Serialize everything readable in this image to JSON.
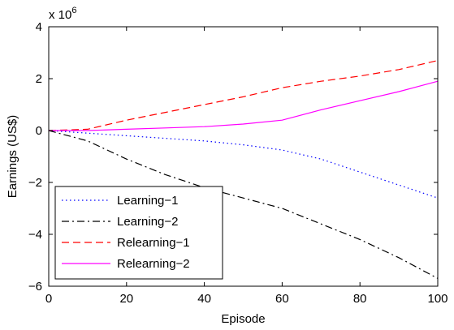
{
  "chart_data": {
    "type": "line",
    "xlabel": "Episode",
    "ylabel": "Earnings (US$)",
    "exponent_label": "x 10",
    "exponent_power": "6",
    "xlim": [
      0,
      100
    ],
    "ylim": [
      -6,
      4
    ],
    "xticks": [
      0,
      20,
      40,
      60,
      80,
      100
    ],
    "yticks": [
      -6,
      -4,
      -2,
      0,
      2,
      4
    ],
    "grid": false,
    "legend_position": "bottom-left",
    "series": [
      {
        "name": "Learning−1",
        "color": "#0000ff",
        "dash": "dotted",
        "x": [
          0,
          10,
          20,
          30,
          40,
          50,
          60,
          70,
          80,
          90,
          100
        ],
        "y": [
          0,
          -0.1,
          -0.2,
          -0.3,
          -0.4,
          -0.55,
          -0.75,
          -1.1,
          -1.6,
          -2.1,
          -2.6
        ]
      },
      {
        "name": "Learning−2",
        "color": "#000000",
        "dash": "dashdot",
        "x": [
          0,
          10,
          20,
          30,
          40,
          50,
          60,
          70,
          80,
          90,
          100
        ],
        "y": [
          0,
          -0.4,
          -1.1,
          -1.7,
          -2.2,
          -2.6,
          -3.0,
          -3.6,
          -4.2,
          -4.9,
          -5.7
        ]
      },
      {
        "name": "Relearning−1",
        "color": "#ff0000",
        "dash": "dashed",
        "x": [
          0,
          10,
          20,
          30,
          40,
          50,
          60,
          70,
          80,
          90,
          100
        ],
        "y": [
          0,
          0.05,
          0.4,
          0.7,
          1.0,
          1.3,
          1.65,
          1.9,
          2.1,
          2.35,
          2.7
        ]
      },
      {
        "name": "Relearning−2",
        "color": "#ff00ff",
        "dash": "solid",
        "x": [
          0,
          10,
          20,
          30,
          40,
          50,
          60,
          70,
          80,
          90,
          100
        ],
        "y": [
          0,
          0,
          0.05,
          0.1,
          0.15,
          0.25,
          0.4,
          0.8,
          1.15,
          1.5,
          1.9
        ]
      }
    ]
  }
}
